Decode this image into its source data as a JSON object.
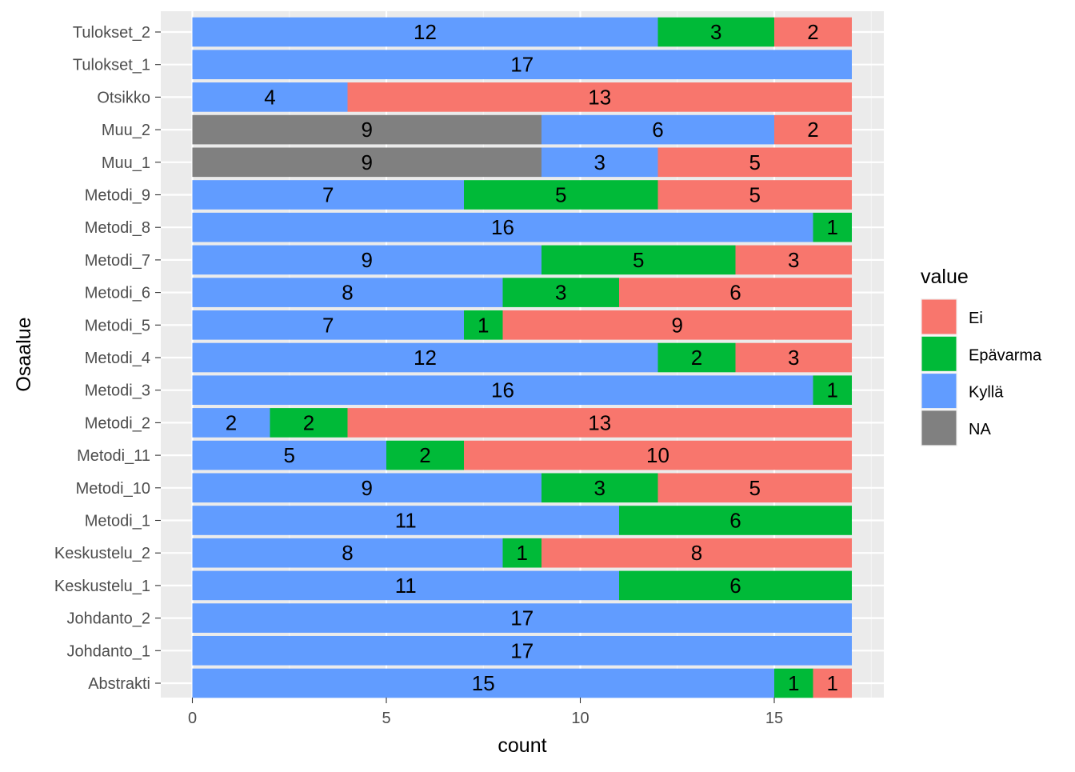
{
  "chart_data": {
    "type": "bar",
    "orientation": "horizontal",
    "stacked": true,
    "title": "",
    "xlabel": "count",
    "ylabel": "Osaalue",
    "xlim": [
      0,
      17.85
    ],
    "xticks": [
      0,
      5,
      10,
      15
    ],
    "grid": true,
    "legend": {
      "title": "value",
      "position": "right",
      "entries": [
        {
          "name": "Ei",
          "color": "#F8766D"
        },
        {
          "name": "Epävarma",
          "color": "#00BA38"
        },
        {
          "name": "Kyllä",
          "color": "#619CFF"
        },
        {
          "name": "NA",
          "color": "#808080"
        }
      ]
    },
    "stack_order": [
      "NA",
      "Kyllä",
      "Epävarma",
      "Ei"
    ],
    "categories": [
      "Tulokset_2",
      "Tulokset_1",
      "Otsikko",
      "Muu_2",
      "Muu_1",
      "Metodi_9",
      "Metodi_8",
      "Metodi_7",
      "Metodi_6",
      "Metodi_5",
      "Metodi_4",
      "Metodi_3",
      "Metodi_2",
      "Metodi_11",
      "Metodi_10",
      "Metodi_1",
      "Keskustelu_2",
      "Keskustelu_1",
      "Johdanto_2",
      "Johdanto_1",
      "Abstrakti"
    ],
    "series": [
      {
        "name": "NA",
        "color": "#808080",
        "values": [
          0,
          0,
          0,
          9,
          9,
          0,
          0,
          0,
          0,
          0,
          0,
          0,
          0,
          0,
          0,
          0,
          0,
          0,
          0,
          0,
          0
        ]
      },
      {
        "name": "Kyllä",
        "color": "#619CFF",
        "values": [
          12,
          17,
          4,
          6,
          3,
          7,
          16,
          9,
          8,
          7,
          12,
          16,
          2,
          5,
          9,
          11,
          8,
          11,
          17,
          17,
          15
        ]
      },
      {
        "name": "Epävarma",
        "color": "#00BA38",
        "values": [
          3,
          0,
          0,
          0,
          0,
          5,
          1,
          5,
          3,
          1,
          2,
          1,
          2,
          2,
          3,
          6,
          1,
          6,
          0,
          0,
          1
        ]
      },
      {
        "name": "Ei",
        "color": "#F8766D",
        "values": [
          2,
          0,
          13,
          2,
          5,
          5,
          0,
          3,
          6,
          9,
          3,
          0,
          13,
          10,
          5,
          0,
          8,
          0,
          0,
          0,
          1
        ]
      }
    ]
  }
}
